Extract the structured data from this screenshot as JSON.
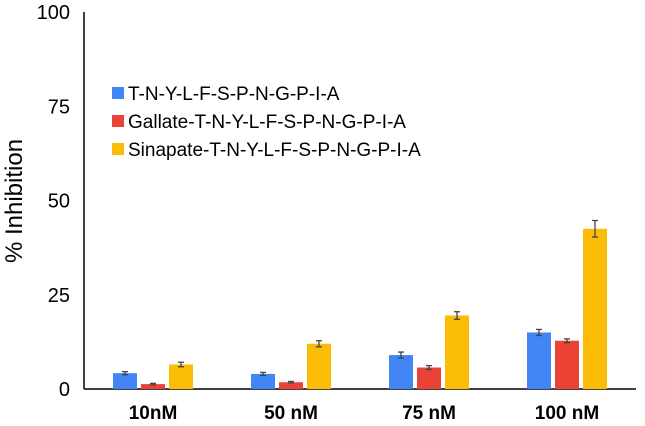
{
  "chart_data": {
    "type": "bar",
    "categories": [
      "10nM",
      "50 nM",
      "75 nM",
      "100 nM"
    ],
    "series": [
      {
        "name": "T-N-Y-L-F-S-P-N-G-P-I-A",
        "color": "#4285F4",
        "values": [
          4.2,
          4.0,
          9.0,
          15.0
        ],
        "errors": [
          0.4,
          0.4,
          0.8,
          0.8
        ]
      },
      {
        "name": "Gallate-T-N-Y-L-F-S-P-N-G-P-I-A",
        "color": "#EA4335",
        "values": [
          1.3,
          1.8,
          5.7,
          12.8
        ],
        "errors": [
          0.2,
          0.2,
          0.5,
          0.5
        ]
      },
      {
        "name": "Sinapate-T-N-Y-L-F-S-P-N-G-P-I-A",
        "color": "#FBBC05",
        "values": [
          6.5,
          12.0,
          19.5,
          42.5
        ],
        "errors": [
          0.6,
          0.8,
          1.0,
          2.2
        ]
      }
    ],
    "title": "",
    "xlabel": "",
    "ylabel": "% Inhibition",
    "ylim": [
      0,
      100
    ],
    "yticks": [
      0,
      25,
      50,
      75,
      100
    ],
    "grid": false,
    "legend_position": "upper-left"
  }
}
